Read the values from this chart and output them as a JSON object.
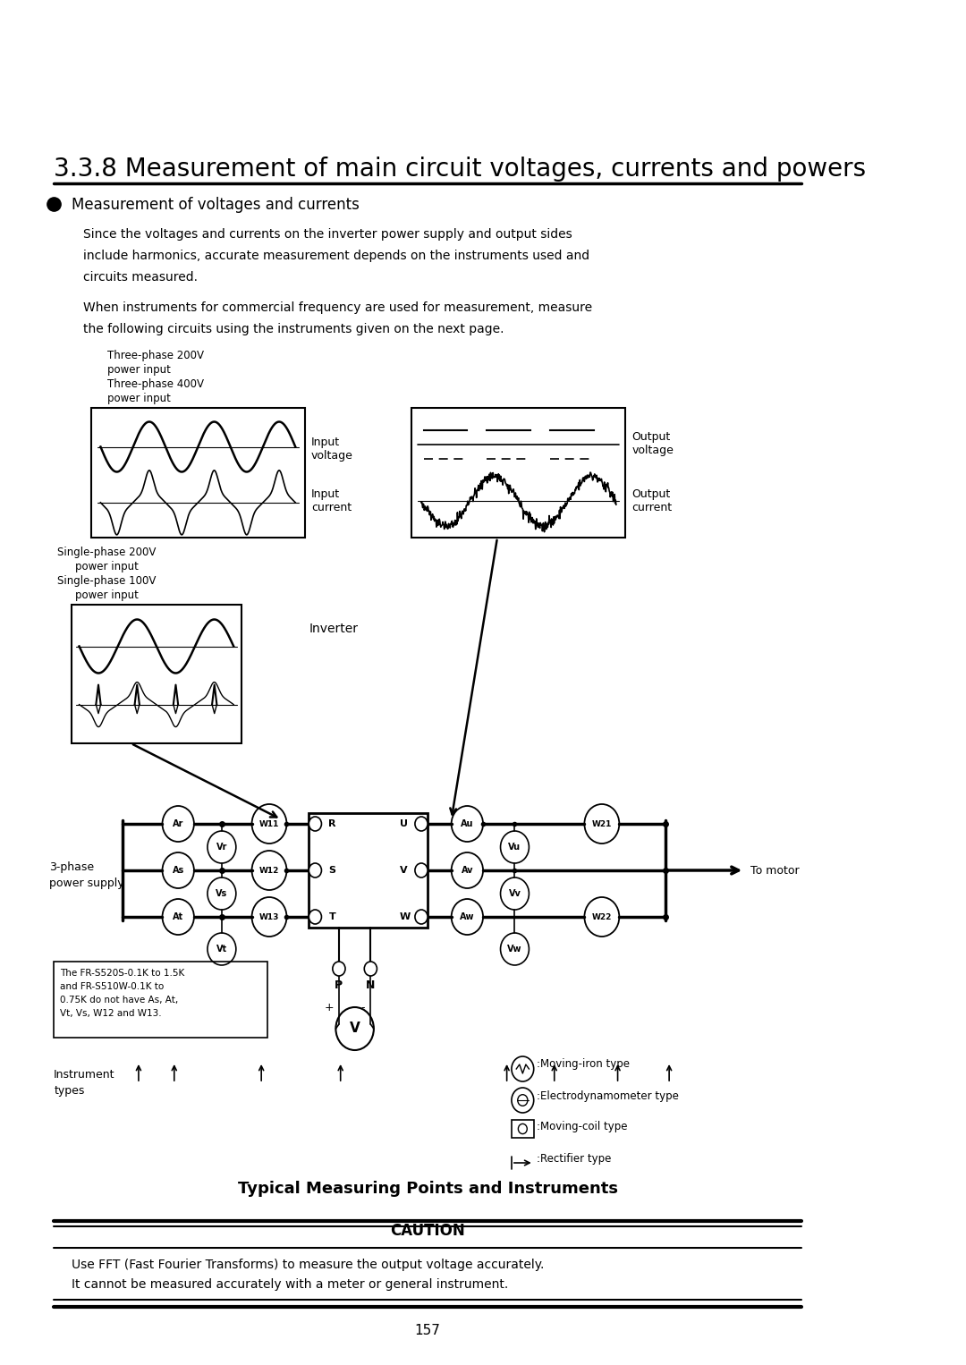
{
  "title": "3.3.8 Measurement of main circuit voltages, currents and powers",
  "bullet_header": "Measurement of voltages and currents",
  "para1_l1": "Since the voltages and currents on the inverter power supply and output sides",
  "para1_l2": "include harmonics, accurate measurement depends on the instruments used and",
  "para1_l3": "circuits measured.",
  "para2_l1": "When instruments for commercial frequency are used for measurement, measure",
  "para2_l2": "the following circuits using the instruments given on the next page.",
  "label_3phase_top_l1": "Three-phase 200V",
  "label_3phase_top_l2": "power input",
  "label_3phase_top_l3": "Three-phase 400V",
  "label_3phase_top_l4": "power input",
  "label_input_voltage": "Input\nvoltage",
  "label_input_current": "Input\ncurrent",
  "label_output_voltage": "Output\nvoltage",
  "label_output_current": "Output\ncurrent",
  "label_single_phase_l1": "Single-phase 200V",
  "label_single_phase_l2": "power input",
  "label_single_phase_l3": "Single-phase 100V",
  "label_single_phase_l4": "power input",
  "label_inverter": "Inverter",
  "label_3phase_supply_l1": "3-phase",
  "label_3phase_supply_l2": "power supply",
  "label_to_motor": "To motor",
  "note_box_l1": "The FR-S520S-0.1K to 1.5K",
  "note_box_l2": "and FR-S510W-0.1K to",
  "note_box_l3": "0.75K do not have As, At,",
  "note_box_l4": "Vt, Vs, W12 and W13.",
  "label_instrument_types_l1": "Instrument",
  "label_instrument_types_l2": "types",
  "label_moving_iron": ":Moving-iron type",
  "label_electrodyn": ":Electrodynamometer type",
  "label_moving_coil": ":Moving-coil type",
  "label_rectifier": ":Rectifier type",
  "subtitle": "Typical Measuring Points and Instruments",
  "caution_header": "CAUTION",
  "caution_text1": "Use FFT (Fast Fourier Transforms) to measure the output voltage accurately.",
  "caution_text2": "It cannot be measured accurately with a meter or general instrument.",
  "page_number": "157",
  "bg_color": "#ffffff",
  "text_color": "#000000"
}
